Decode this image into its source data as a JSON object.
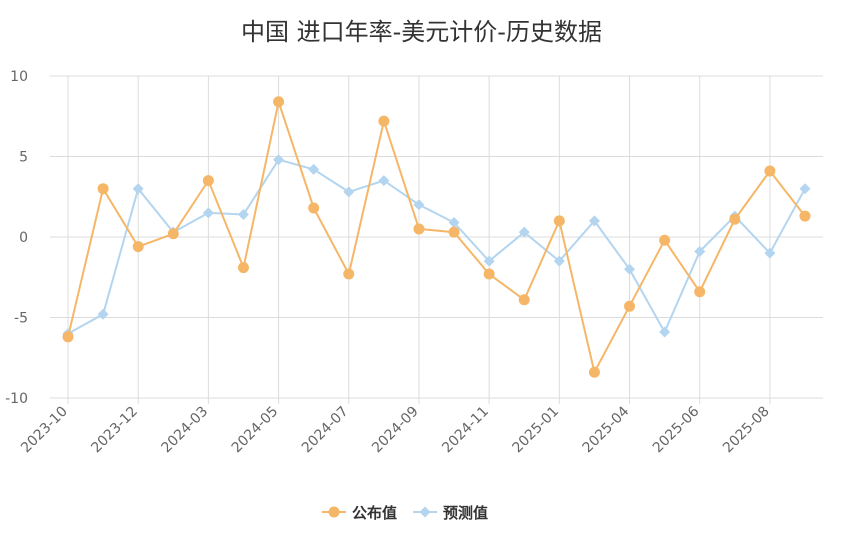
{
  "chart_data": {
    "type": "line",
    "title": "中国 进口年率-美元计价-历史数据",
    "xlabel": "",
    "ylabel": "",
    "ylim": [
      -10,
      10
    ],
    "yticks": [
      -10,
      -5,
      0,
      5,
      10
    ],
    "grid": true,
    "legend_position": "bottom-center",
    "x": [
      "2023-10",
      "2023-11",
      "2023-12",
      "2024-01",
      "2024-03",
      "2024-04",
      "2024-05",
      "2024-06",
      "2024-07",
      "2024-08",
      "2024-09",
      "2024-10",
      "2024-11",
      "2024-12",
      "2025-01",
      "2025-03",
      "2025-04",
      "2025-05",
      "2025-06",
      "2025-07",
      "2025-08",
      "2025-09"
    ],
    "tick_labels": [
      "2023-10",
      "2023-12",
      "2024-03",
      "2024-05",
      "2024-07",
      "2024-09",
      "2024-11",
      "2025-01",
      "2025-04",
      "2025-06",
      "2025-08"
    ],
    "series": [
      {
        "name": "公布值",
        "color": "#f5b767",
        "marker": "circle",
        "values": [
          -6.2,
          3.0,
          -0.6,
          0.2,
          3.5,
          -1.9,
          8.4,
          1.8,
          -2.3,
          7.2,
          0.5,
          0.3,
          -2.3,
          -3.9,
          1.0,
          -8.4,
          -4.3,
          -0.2,
          -3.4,
          1.1,
          4.1,
          1.3
        ]
      },
      {
        "name": "预测值",
        "color": "#b3d5f0",
        "marker": "diamond",
        "values": [
          -6.0,
          -4.8,
          3.0,
          0.3,
          1.5,
          1.4,
          4.8,
          4.2,
          2.8,
          3.5,
          2.0,
          0.9,
          -1.5,
          0.3,
          -1.5,
          1.0,
          -2.0,
          -5.9,
          -0.9,
          1.3,
          -1.0,
          3.0
        ]
      }
    ]
  }
}
